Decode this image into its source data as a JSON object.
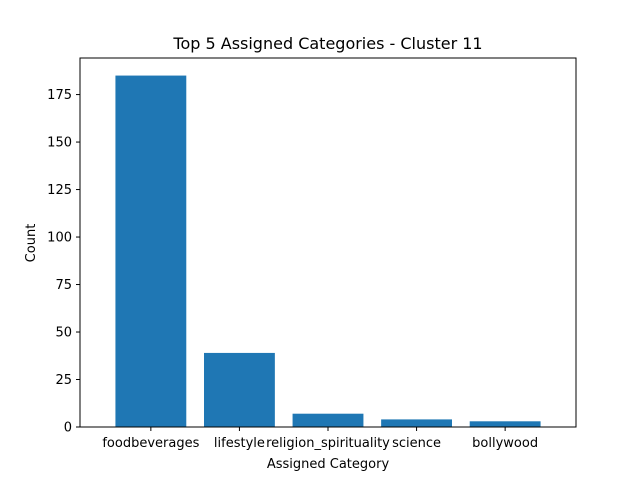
{
  "chart_data": {
    "type": "bar",
    "title": "Top 5 Assigned Categories - Cluster 11",
    "xlabel": "Assigned Category",
    "ylabel": "Count",
    "categories": [
      "foodbeverages",
      "lifestyle",
      "religion_spirituality",
      "science",
      "bollywood"
    ],
    "values": [
      185,
      39,
      7,
      4,
      3
    ],
    "ylim": [
      0,
      194.25
    ],
    "yticks": [
      0,
      25,
      50,
      75,
      100,
      125,
      150,
      175
    ],
    "grid": false,
    "legend": "none",
    "bar_color": "#1f77b4"
  }
}
